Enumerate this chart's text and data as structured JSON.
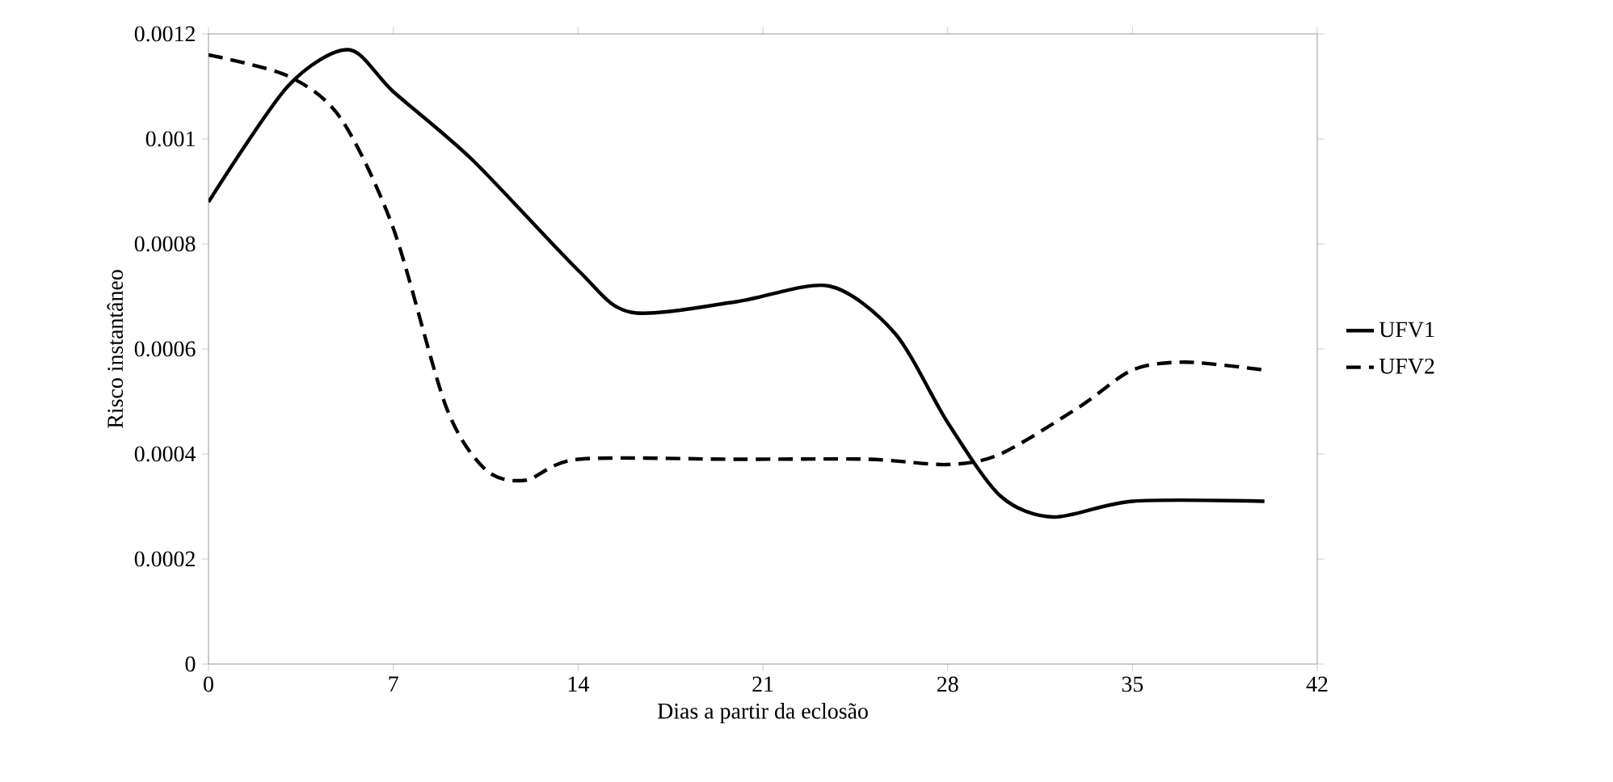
{
  "chart_data": {
    "type": "line",
    "xlabel": "Dias a partir da eclosão",
    "ylabel": "Risco instantâneo",
    "xlim": [
      0,
      42
    ],
    "xticks": [
      0,
      7,
      14,
      21,
      28,
      35,
      42
    ],
    "ylim": [
      0,
      0.0012
    ],
    "yticks": [
      0,
      0.0002,
      0.0004,
      0.0006,
      0.0008,
      0.001,
      0.0012
    ],
    "legend": "right",
    "grid": false,
    "series": [
      {
        "name": "UFV1",
        "color": "#000000",
        "line_style": "solid",
        "x": [
          0,
          3,
          5.3,
          7,
          10,
          14,
          16,
          20,
          23.5,
          26,
          28,
          30,
          32,
          35,
          40
        ],
        "values": [
          0.00088,
          0.0011,
          0.00117,
          0.00109,
          0.00096,
          0.00075,
          0.00067,
          0.00069,
          0.00072,
          0.00063,
          0.00046,
          0.00032,
          0.00028,
          0.00031,
          0.00031
        ]
      },
      {
        "name": "UFV2",
        "color": "#000000",
        "line_style": "dashed",
        "x": [
          0,
          3,
          5,
          7,
          9,
          10.5,
          12,
          14,
          20,
          25,
          28,
          30,
          33,
          35,
          37,
          40
        ],
        "values": [
          0.00116,
          0.00112,
          0.00104,
          0.00083,
          0.00049,
          0.00037,
          0.00035,
          0.00039,
          0.00039,
          0.00039,
          0.00038,
          0.0004,
          0.00049,
          0.00056,
          0.000575,
          0.00056
        ]
      }
    ]
  }
}
